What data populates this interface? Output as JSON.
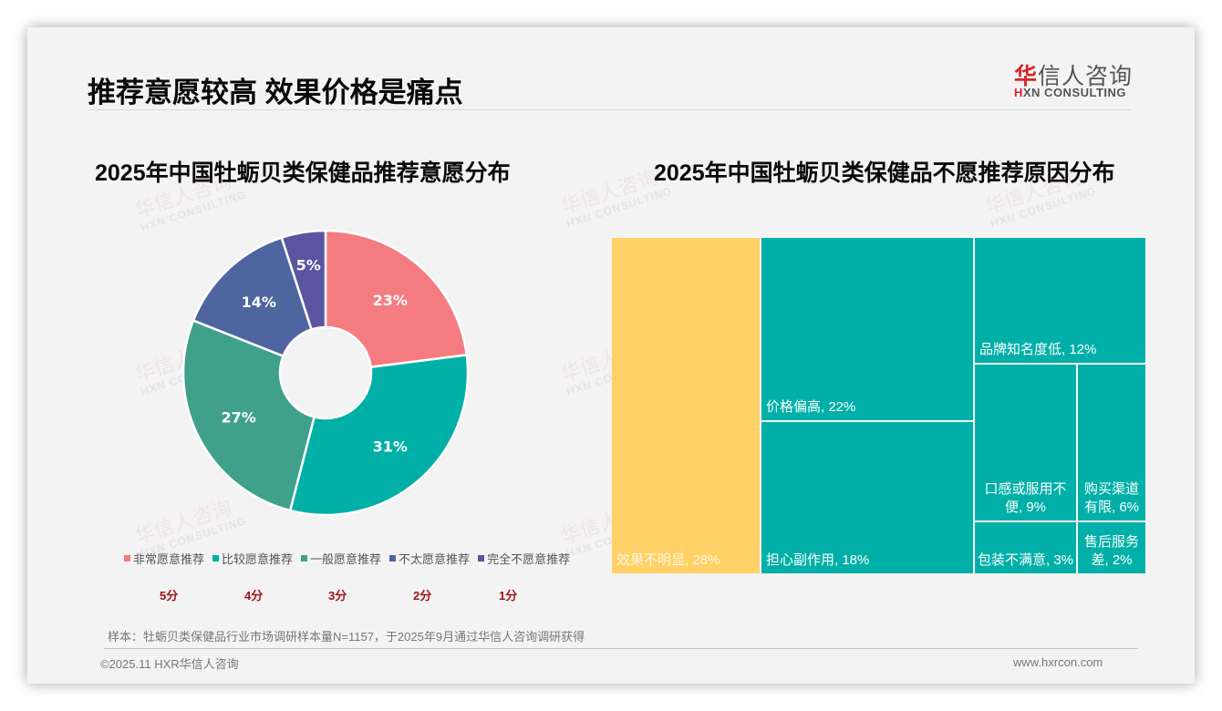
{
  "header": {
    "title": "推荐意愿较高 效果价格是痛点",
    "logo_cn_first": "华",
    "logo_cn_rest": "信人咨询",
    "logo_en_first": "H",
    "logo_en_rest": "XN CONSULTING"
  },
  "watermark": {
    "cn": "华信人咨询",
    "en": "HXN CONSULTING"
  },
  "left_chart": {
    "title": "2025年中国牡蛎贝类保健品推荐意愿分布",
    "legend": [
      {
        "label": "非常愿意推荐",
        "color": "#F47C80"
      },
      {
        "label": "比较愿意推荐",
        "color": "#00B0A6"
      },
      {
        "label": "一般愿意推荐",
        "color": "#3FA08C"
      },
      {
        "label": "不太愿意推荐",
        "color": "#4F65A0"
      },
      {
        "label": "完全不愿意推荐",
        "color": "#5A55A0"
      }
    ],
    "scores": [
      "5分",
      "4分",
      "3分",
      "2分",
      "1分"
    ]
  },
  "right_chart": {
    "title": "2025年中国牡蛎贝类保健品不愿推荐原因分布",
    "cells": [
      {
        "label": "效果不明显, 28%"
      },
      {
        "label": "价格偏高, 22%"
      },
      {
        "label": "担心副作用, 18%"
      },
      {
        "label": "品牌知名度低, 12%"
      },
      {
        "label": "口感或服用不便, 9%"
      },
      {
        "label": "购买渠道有限, 6%"
      },
      {
        "label": "包装不满意, 3%"
      },
      {
        "label": "售后服务差, 2%"
      }
    ]
  },
  "footer": {
    "note": "样本：牡蛎贝类保健品行业市场调研样本量N=1157，于2025年9月通过华信人咨询调研获得",
    "copyright": "©2025.11 HXR华信人咨询",
    "website": "www.hxrcon.com"
  },
  "chart_data": [
    {
      "type": "pie",
      "title": "2025年中国牡蛎贝类保健品推荐意愿分布",
      "donut": true,
      "categories": [
        "非常愿意推荐",
        "比较愿意推荐",
        "一般愿意推荐",
        "不太愿意推荐",
        "完全不愿意推荐"
      ],
      "scores": [
        "5分",
        "4分",
        "3分",
        "2分",
        "1分"
      ],
      "values": [
        23,
        31,
        27,
        14,
        5
      ],
      "labels": [
        "23%",
        "31%",
        "27%",
        "14%",
        "5%"
      ],
      "colors": [
        "#F47C80",
        "#00B0A6",
        "#3FA08C",
        "#4F65A0",
        "#5A55A0"
      ],
      "legend_position": "bottom"
    },
    {
      "type": "treemap",
      "title": "2025年中国牡蛎贝类保健品不愿推荐原因分布",
      "categories": [
        "效果不明显",
        "价格偏高",
        "担心副作用",
        "品牌知名度低",
        "口感或服用不便",
        "购买渠道有限",
        "包装不满意",
        "售后服务差"
      ],
      "values": [
        28,
        22,
        18,
        12,
        9,
        6,
        3,
        2
      ],
      "unit": "%",
      "colors": {
        "效果不明显": "#FFD166",
        "others": "#00B0A8"
      }
    }
  ]
}
